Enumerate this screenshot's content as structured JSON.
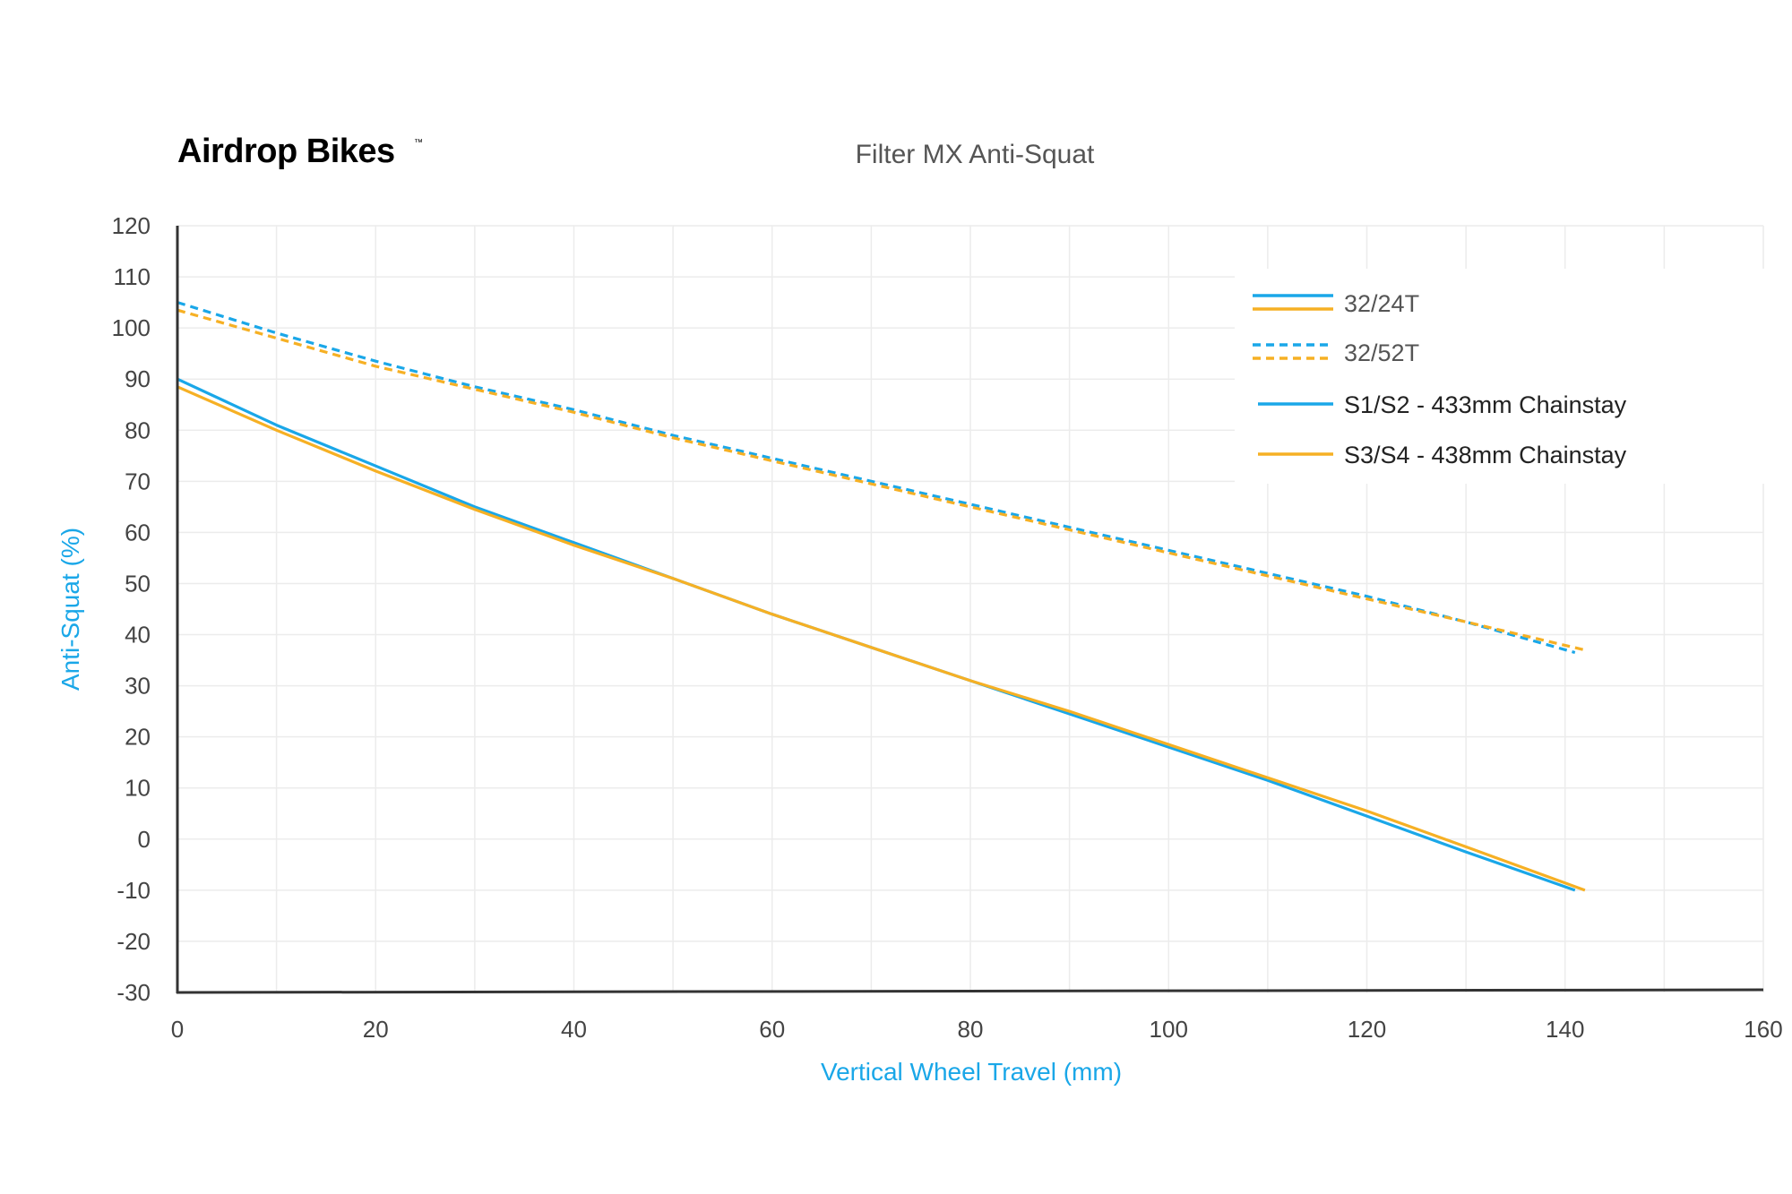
{
  "brand": {
    "name": "Airdrop Bikes",
    "mark": "™"
  },
  "colors": {
    "blue": "#1aa7e8",
    "orange": "#f6b024",
    "axis": "#333333",
    "grid": "#ececec"
  },
  "chart_data": {
    "type": "line",
    "title": "Filter MX Anti-Squat",
    "xlabel": "Vertical Wheel Travel (mm)",
    "ylabel": "Anti-Squat (%)",
    "xlim": [
      0,
      160
    ],
    "ylim": [
      -30,
      120
    ],
    "xticks": [
      "0",
      "20",
      "40",
      "60",
      "80",
      "100",
      "120",
      "140",
      "160"
    ],
    "yticks": [
      "120",
      "110",
      "100",
      "90",
      "80",
      "70",
      "60",
      "50",
      "40",
      "30",
      "20",
      "10",
      "0",
      "-10",
      "-20",
      "-30"
    ],
    "grid": true,
    "legend": {
      "position": "top-right",
      "entries": [
        {
          "label": "32/24T",
          "style": "solid",
          "colors": [
            "blue",
            "orange"
          ]
        },
        {
          "label": "32/52T",
          "style": "dashed",
          "colors": [
            "blue",
            "orange"
          ]
        },
        {
          "label": "S1/S2 - 433mm Chainstay",
          "style": "solid",
          "colors": [
            "blue"
          ]
        },
        {
          "label": "S3/S4 - 438mm Chainstay",
          "style": "solid",
          "colors": [
            "orange"
          ]
        }
      ]
    },
    "series": [
      {
        "gear": "32/24T",
        "chainstay": "S1/S2 - 433mm Chainstay",
        "color": "blue",
        "style": "solid",
        "x": [
          0,
          10,
          20,
          30,
          40,
          50,
          60,
          70,
          80,
          90,
          100,
          110,
          120,
          130,
          141
        ],
        "y": [
          90,
          81,
          73,
          65,
          58,
          51,
          44,
          37.5,
          31,
          24.5,
          18,
          11.5,
          4.5,
          -2.5,
          -10
        ]
      },
      {
        "gear": "32/24T",
        "chainstay": "S3/S4 - 438mm Chainstay",
        "color": "orange",
        "style": "solid",
        "x": [
          0,
          10,
          20,
          30,
          40,
          50,
          60,
          70,
          80,
          90,
          100,
          110,
          120,
          130,
          142
        ],
        "y": [
          88.5,
          80,
          72,
          64.5,
          57.5,
          51,
          44,
          37.5,
          31,
          25,
          18.5,
          12,
          5.5,
          -1.5,
          -10
        ]
      },
      {
        "gear": "32/52T",
        "chainstay": "S1/S2 - 433mm Chainstay",
        "color": "blue",
        "style": "dashed",
        "x": [
          0,
          10,
          20,
          30,
          40,
          50,
          60,
          70,
          80,
          90,
          100,
          110,
          120,
          130,
          141
        ],
        "y": [
          105,
          99,
          93.5,
          88.5,
          84,
          79,
          74.5,
          70,
          65.5,
          61,
          56.5,
          52,
          47.5,
          42.5,
          36.5
        ]
      },
      {
        "gear": "32/52T",
        "chainstay": "S3/S4 - 438mm Chainstay",
        "color": "orange",
        "style": "dashed",
        "x": [
          0,
          10,
          20,
          30,
          40,
          50,
          60,
          70,
          80,
          90,
          100,
          110,
          120,
          130,
          142
        ],
        "y": [
          103.5,
          98,
          92.5,
          88,
          83.5,
          78.5,
          74,
          69.5,
          65,
          60.5,
          56,
          51.5,
          47,
          42.5,
          37
        ]
      }
    ]
  }
}
